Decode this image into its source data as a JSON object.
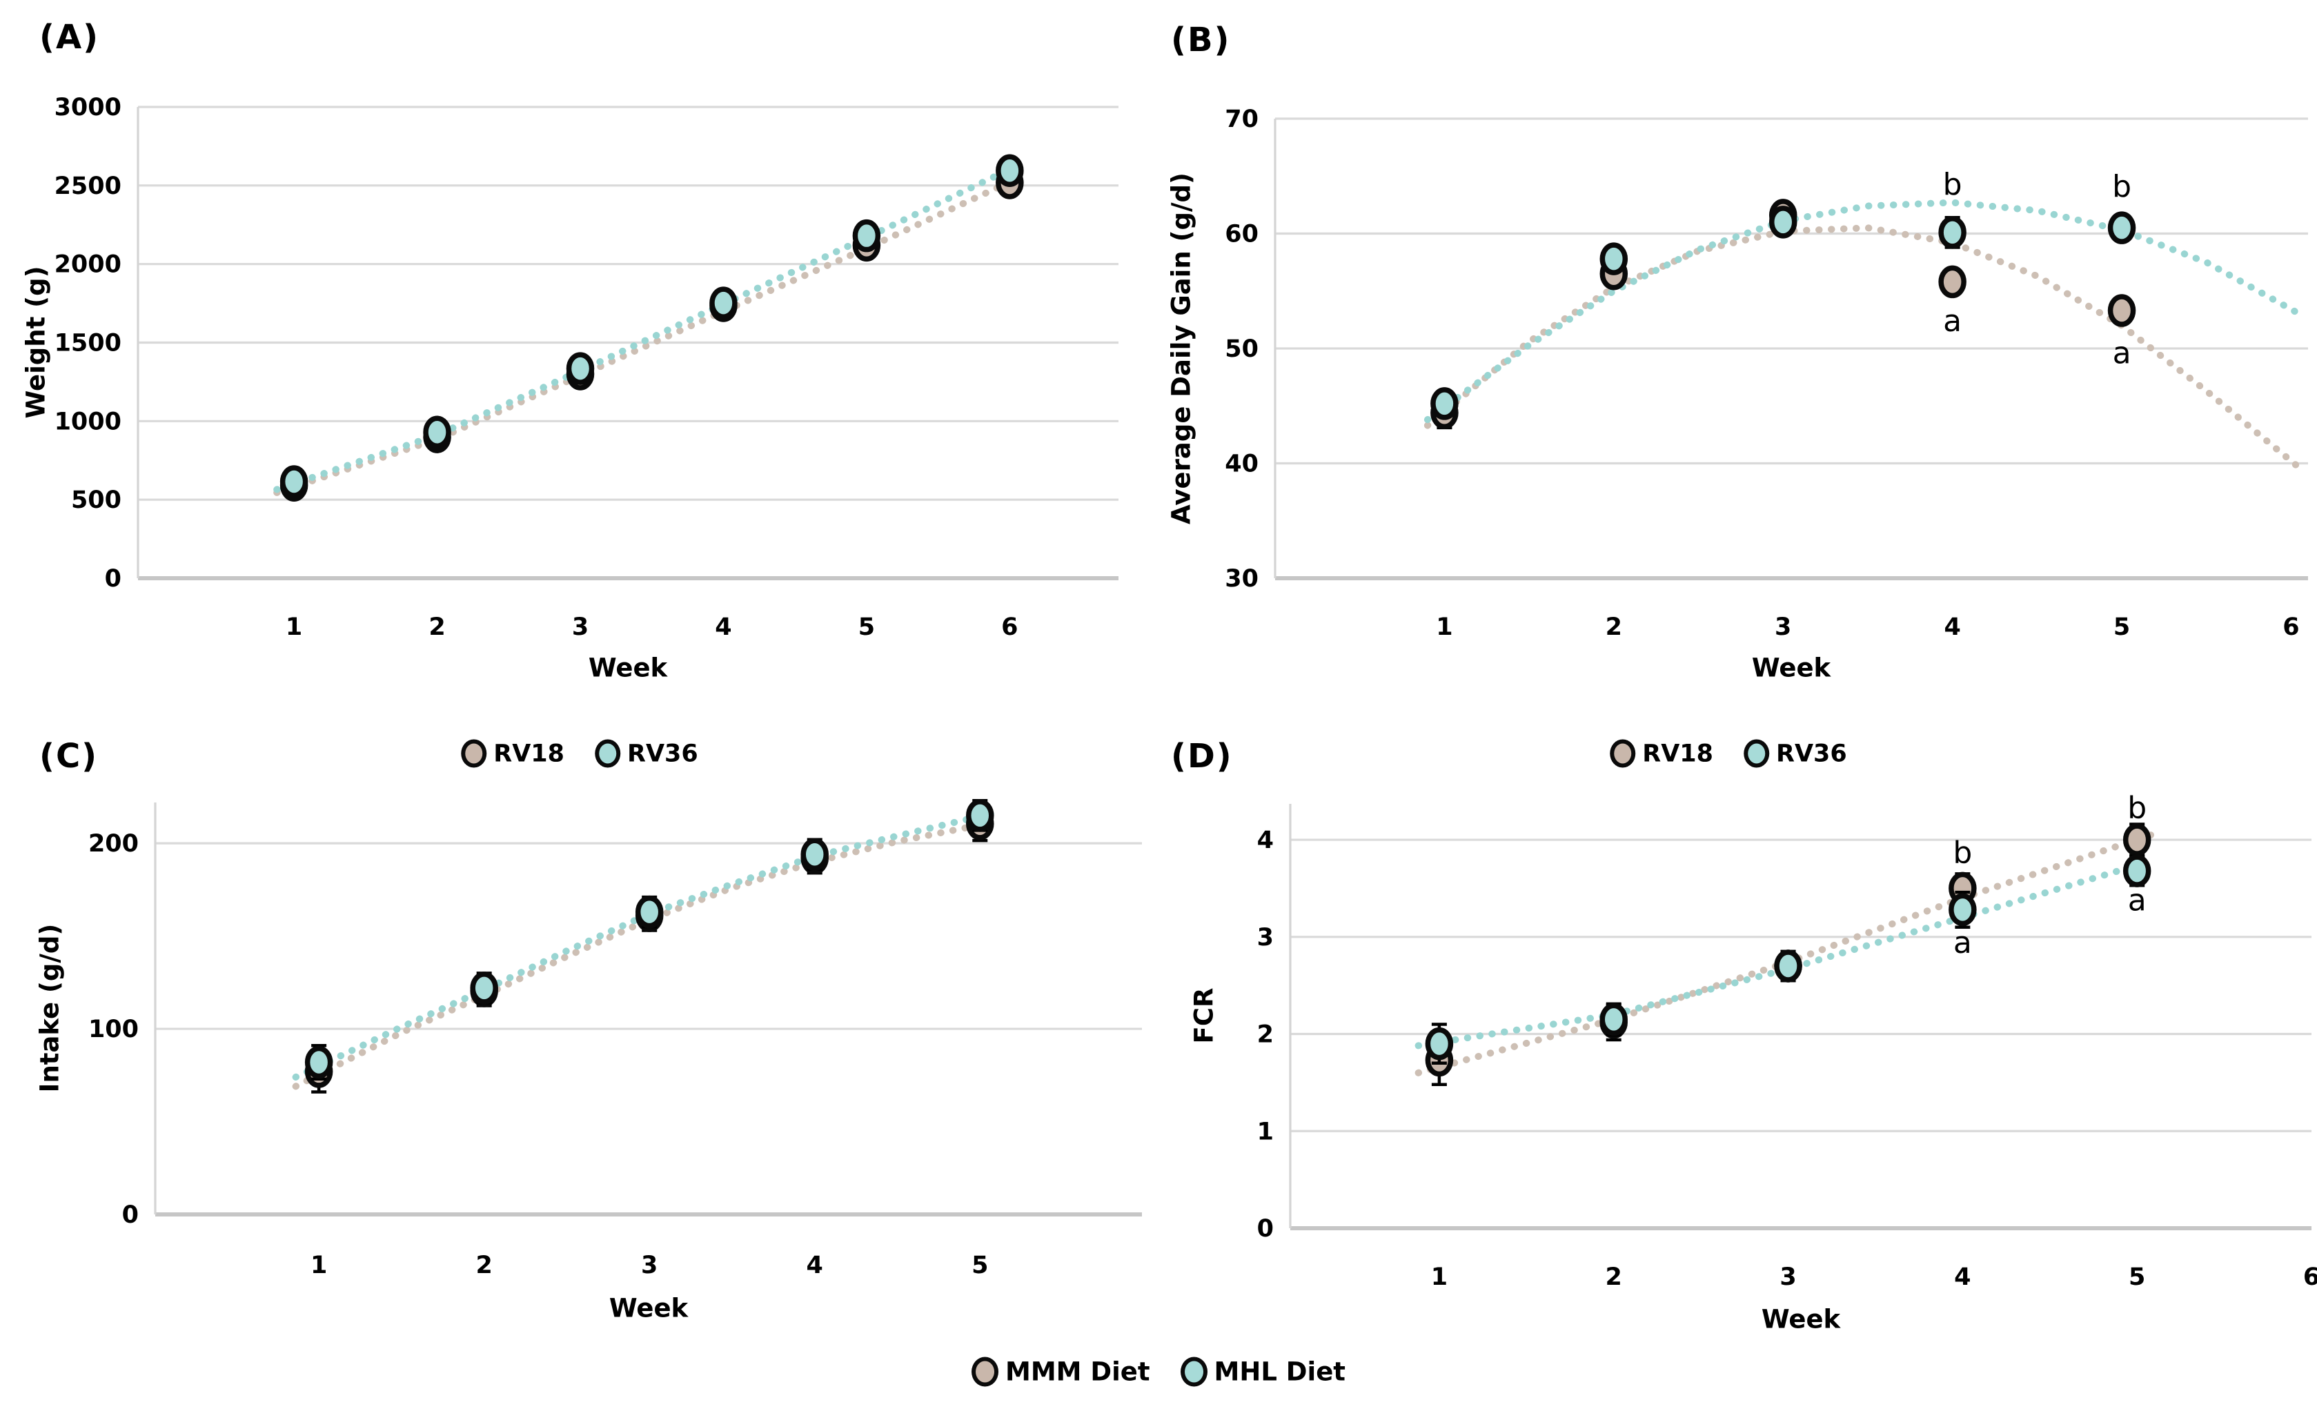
{
  "figure": {
    "background": "#ffffff",
    "bottom_legend": {
      "items": [
        {
          "label": "MMM Diet",
          "color": "#c9b7ab"
        },
        {
          "label": "MHL Diet",
          "color": "#a7dbd8"
        }
      ]
    }
  },
  "colors": {
    "rv18_marker": "#c9b7ab",
    "rv18_trend": "#cdbfb4",
    "rv36_marker": "#a7dbd8",
    "rv36_trend": "#99d5d2",
    "gridline": "#d9d9d9",
    "bottom_axis": "#c6c6c6",
    "left_axis": "#d4d4d4",
    "marker_outline": "#0a0a0a",
    "text": "#000000"
  },
  "chart_data": [
    {
      "type": "scatter",
      "panel_label": "(A)",
      "ylabel": "Weight (g)",
      "xlabel": "Week",
      "ylim": [
        0,
        3000
      ],
      "yticks": [
        0,
        500,
        1000,
        1500,
        2000,
        2500,
        3000
      ],
      "xticks": [
        1,
        2,
        3,
        4,
        5,
        6
      ],
      "grid": "horizontal",
      "legend": null,
      "annotations": [],
      "series": [
        {
          "name": "RV18",
          "diet": "MMM Diet",
          "marker_color": "#c9b7ab",
          "trend_color": "#cdbfb4",
          "x": [
            1,
            2,
            3,
            4,
            5,
            6
          ],
          "y": [
            592,
            900,
            1300,
            1735,
            2120,
            2517
          ],
          "err": [
            0,
            0,
            0,
            0,
            0,
            0
          ],
          "trend": [
            [
              0.88,
              545
            ],
            [
              2,
              885
            ],
            [
              3,
              1290
            ],
            [
              4,
              1700
            ],
            [
              5,
              2100
            ],
            [
              5.96,
              2505
            ]
          ]
        },
        {
          "name": "RV36",
          "diet": "MHL Diet",
          "marker_color": "#a7dbd8",
          "trend_color": "#99d5d2",
          "x": [
            1,
            2,
            3,
            4,
            5,
            6
          ],
          "y": [
            615,
            930,
            1335,
            1752,
            2180,
            2595
          ],
          "err": [
            0,
            0,
            0,
            0,
            0,
            0
          ],
          "trend": [
            [
              0.88,
              565
            ],
            [
              2,
              912
            ],
            [
              3,
              1320
            ],
            [
              4,
              1745
            ],
            [
              5,
              2168
            ],
            [
              5.96,
              2585
            ]
          ]
        }
      ]
    },
    {
      "type": "scatter",
      "panel_label": "(B)",
      "ylabel": "Average Daily Gain (g/d)",
      "xlabel": "Week",
      "ylim": [
        30,
        70
      ],
      "yticks": [
        30,
        40,
        50,
        60,
        70
      ],
      "xticks": [
        1,
        2,
        3,
        4,
        5,
        6
      ],
      "grid": "horizontal",
      "legend": null,
      "annotations": [
        {
          "x": 4,
          "y": 64.3,
          "text": "b"
        },
        {
          "x": 4,
          "y": 52.4,
          "text": "a"
        },
        {
          "x": 5,
          "y": 64.1,
          "text": "b"
        },
        {
          "x": 5,
          "y": 49.6,
          "text": "a"
        }
      ],
      "series": [
        {
          "name": "RV18",
          "diet": "MMM Diet",
          "marker_color": "#c9b7ab",
          "trend_color": "#cdbfb4",
          "x": [
            1,
            2,
            3,
            4,
            5
          ],
          "y": [
            44.4,
            56.5,
            61.6,
            55.8,
            53.3
          ],
          "err": [
            1.3,
            1.0,
            0.9,
            1.0,
            0.9
          ],
          "trend": [
            [
              0.9,
              43.3
            ],
            [
              1.5,
              50.6
            ],
            [
              2,
              55.3
            ],
            [
              2.5,
              58.5
            ],
            [
              3,
              60.2
            ],
            [
              3.5,
              60.5
            ],
            [
              4,
              59.2
            ],
            [
              4.5,
              56.3
            ],
            [
              5,
              52.0
            ],
            [
              5.5,
              46.3
            ],
            [
              6.05,
              39.6
            ]
          ]
        },
        {
          "name": "RV36",
          "diet": "MHL Diet",
          "marker_color": "#a7dbd8",
          "trend_color": "#99d5d2",
          "x": [
            1,
            2,
            3,
            4,
            5
          ],
          "y": [
            45.2,
            57.8,
            61.0,
            60.1,
            60.5
          ],
          "err": [
            1.0,
            0.9,
            1.0,
            1.3,
            1.0
          ],
          "trend": [
            [
              0.9,
              43.8
            ],
            [
              1.5,
              50.3
            ],
            [
              2,
              55.0
            ],
            [
              2.5,
              58.6
            ],
            [
              3,
              61.1
            ],
            [
              3.5,
              62.4
            ],
            [
              4,
              62.7
            ],
            [
              4.5,
              62.0
            ],
            [
              5,
              60.3
            ],
            [
              5.5,
              57.5
            ],
            [
              6.05,
              53.0
            ]
          ]
        }
      ]
    },
    {
      "type": "scatter",
      "panel_label": "(C)",
      "ylabel": "Intake (g/d)",
      "xlabel": "Week",
      "ylim": [
        0,
        222
      ],
      "yticks": [
        0,
        100,
        200
      ],
      "xticks": [
        1,
        2,
        3,
        4,
        5
      ],
      "grid": "horizontal",
      "legend": {
        "items": [
          {
            "label": "RV18",
            "color": "#c9b7ab"
          },
          {
            "label": "RV36",
            "color": "#a7dbd8"
          }
        ]
      },
      "annotations": [],
      "series": [
        {
          "name": "RV18",
          "diet": "MMM Diet",
          "marker_color": "#c9b7ab",
          "trend_color": "#cdbfb4",
          "x": [
            1,
            2,
            3,
            4,
            5
          ],
          "y": [
            77,
            120.5,
            161,
            192,
            210.5
          ],
          "err": [
            11,
            8,
            8,
            8,
            9
          ],
          "trend": [
            [
              0.86,
              69
            ],
            [
              1.5,
              98
            ],
            [
              2,
              118
            ],
            [
              2.5,
              139
            ],
            [
              3,
              159
            ],
            [
              3.5,
              176
            ],
            [
              4,
              190
            ],
            [
              4.5,
              201
            ],
            [
              5.12,
              212
            ]
          ]
        },
        {
          "name": "RV36",
          "diet": "MHL Diet",
          "marker_color": "#a7dbd8",
          "trend_color": "#99d5d2",
          "x": [
            1,
            2,
            3,
            4,
            5
          ],
          "y": [
            82,
            122,
            163,
            194,
            215
          ],
          "err": [
            9,
            8,
            8,
            8,
            8
          ],
          "trend": [
            [
              0.86,
              74
            ],
            [
              1.5,
              101
            ],
            [
              2,
              121
            ],
            [
              2.5,
              142
            ],
            [
              3,
              162
            ],
            [
              3.5,
              178
            ],
            [
              4,
              193
            ],
            [
              4.5,
              204
            ],
            [
              5.12,
              217
            ]
          ]
        }
      ]
    },
    {
      "type": "scatter",
      "panel_label": "(D)",
      "ylabel": "FCR",
      "xlabel": "Week",
      "ylim": [
        0,
        4.37
      ],
      "yticks": [
        0,
        1,
        2,
        3,
        4
      ],
      "xticks": [
        1,
        2,
        3,
        4,
        5,
        6
      ],
      "grid": "horizontal",
      "legend": {
        "items": [
          {
            "label": "RV18",
            "color": "#c9b7ab"
          },
          {
            "label": "RV36",
            "color": "#a7dbd8"
          }
        ]
      },
      "annotations": [
        {
          "x": 4,
          "y": 3.87,
          "text": "b"
        },
        {
          "x": 4,
          "y": 2.94,
          "text": "a"
        },
        {
          "x": 5,
          "y": 4.33,
          "text": "b"
        },
        {
          "x": 5,
          "y": 3.38,
          "text": "a"
        }
      ],
      "series": [
        {
          "name": "RV18",
          "diet": "MMM Diet",
          "marker_color": "#c9b7ab",
          "trend_color": "#cdbfb4",
          "x": [
            1,
            2,
            3,
            4,
            5
          ],
          "y": [
            1.73,
            2.12,
            2.7,
            3.5,
            4.0
          ],
          "err": [
            0.25,
            0.18,
            0.15,
            0.15,
            0.16
          ],
          "trend": [
            [
              0.88,
              1.6
            ],
            [
              2,
              2.15
            ],
            [
              3,
              2.74
            ],
            [
              4,
              3.4
            ],
            [
              5.08,
              4.05
            ]
          ]
        },
        {
          "name": "RV36",
          "diet": "MHL Diet",
          "marker_color": "#a7dbd8",
          "trend_color": "#99d5d2",
          "x": [
            1,
            2,
            3,
            4,
            5
          ],
          "y": [
            1.9,
            2.15,
            2.7,
            3.28,
            3.68
          ],
          "err": [
            0.2,
            0.16,
            0.15,
            0.18,
            0.15
          ],
          "trend": [
            [
              0.88,
              1.88
            ],
            [
              2,
              2.2
            ],
            [
              3,
              2.67
            ],
            [
              4,
              3.2
            ],
            [
              5.08,
              3.78
            ]
          ]
        }
      ]
    }
  ]
}
